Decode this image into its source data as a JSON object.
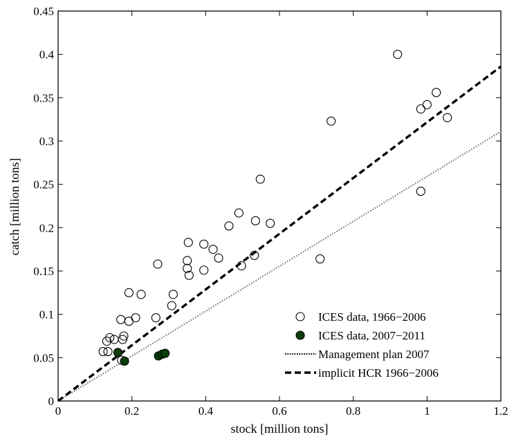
{
  "chart_data": {
    "type": "scatter",
    "xlabel": "stock [million tons]",
    "ylabel": "catch [million tons]",
    "xlim": [
      0,
      1.2
    ],
    "ylim": [
      0,
      0.45
    ],
    "xticks": [
      "0",
      "0.2",
      "0.4",
      "0.6",
      "0.8",
      "1",
      "1.2"
    ],
    "yticks": [
      "0",
      "0.05",
      "0.1",
      "0.15",
      "0.2",
      "0.25",
      "0.3",
      "0.35",
      "0.4",
      "0.45"
    ],
    "grid": false,
    "legend_position": "bottom-right",
    "series": [
      {
        "name": "ICES data, 1966−2006",
        "kind": "scatter",
        "marker": "open-circle",
        "color": "#000000",
        "fill": "none",
        "points": [
          [
            0.92,
            0.4
          ],
          [
            1.025,
            0.356
          ],
          [
            1.0,
            0.342
          ],
          [
            0.983,
            0.337
          ],
          [
            1.055,
            0.327
          ],
          [
            0.983,
            0.242
          ],
          [
            0.74,
            0.323
          ],
          [
            0.548,
            0.256
          ],
          [
            0.49,
            0.217
          ],
          [
            0.535,
            0.208
          ],
          [
            0.575,
            0.205
          ],
          [
            0.463,
            0.202
          ],
          [
            0.353,
            0.183
          ],
          [
            0.395,
            0.181
          ],
          [
            0.42,
            0.175
          ],
          [
            0.435,
            0.165
          ],
          [
            0.532,
            0.168
          ],
          [
            0.71,
            0.164
          ],
          [
            0.497,
            0.156
          ],
          [
            0.35,
            0.162
          ],
          [
            0.27,
            0.158
          ],
          [
            0.35,
            0.153
          ],
          [
            0.395,
            0.151
          ],
          [
            0.355,
            0.145
          ],
          [
            0.312,
            0.123
          ],
          [
            0.225,
            0.123
          ],
          [
            0.192,
            0.125
          ],
          [
            0.308,
            0.11
          ],
          [
            0.265,
            0.096
          ],
          [
            0.21,
            0.096
          ],
          [
            0.17,
            0.094
          ],
          [
            0.192,
            0.092
          ],
          [
            0.178,
            0.075
          ],
          [
            0.175,
            0.071
          ],
          [
            0.152,
            0.071
          ],
          [
            0.14,
            0.073
          ],
          [
            0.132,
            0.069
          ],
          [
            0.135,
            0.057
          ],
          [
            0.122,
            0.057
          ],
          [
            0.172,
            0.047
          ]
        ]
      },
      {
        "name": "ICES data, 2007−2011",
        "kind": "scatter",
        "marker": "filled-circle",
        "color": "#000000",
        "fill": "#0b3d0b",
        "points": [
          [
            0.162,
            0.056
          ],
          [
            0.18,
            0.046
          ],
          [
            0.272,
            0.052
          ],
          [
            0.282,
            0.054
          ],
          [
            0.29,
            0.055
          ]
        ]
      },
      {
        "name": "Management plan 2007",
        "kind": "line",
        "style": "dotted",
        "color": "#777777",
        "points": [
          [
            0,
            0
          ],
          [
            1.2,
            0.311
          ]
        ]
      },
      {
        "name": "implicit HCR 1966−2006",
        "kind": "line",
        "style": "dashed",
        "color": "#000000",
        "points": [
          [
            0,
            0
          ],
          [
            1.2,
            0.386
          ]
        ]
      }
    ]
  }
}
